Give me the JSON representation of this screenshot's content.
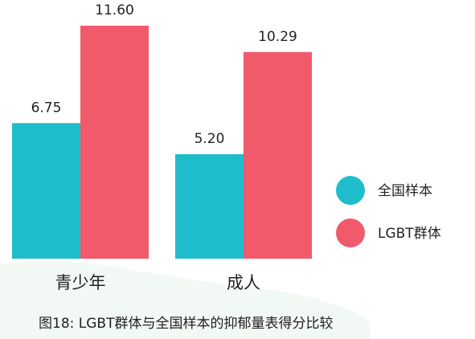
{
  "caption": "图18:  LGBT群体与全国样本的抑郁量表得分比较",
  "colors": {
    "national": "#1fbdcc",
    "lgbt": "#f05a6a",
    "text": "#222222",
    "bg_blob": "#f2f8f4"
  },
  "chart_data": {
    "type": "bar",
    "title": "",
    "xlabel": "",
    "ylabel": "",
    "categories": [
      "青少年",
      "成人"
    ],
    "series": [
      {
        "name": "全国样本",
        "values": [
          6.75,
          5.2
        ],
        "labels": [
          "6.75",
          "5.20"
        ]
      },
      {
        "name": "LGBT群体",
        "values": [
          11.6,
          10.29
        ],
        "labels": [
          "11.60",
          "10.29"
        ]
      }
    ],
    "ylim": [
      0,
      12
    ],
    "grid": false,
    "legend": "right"
  }
}
